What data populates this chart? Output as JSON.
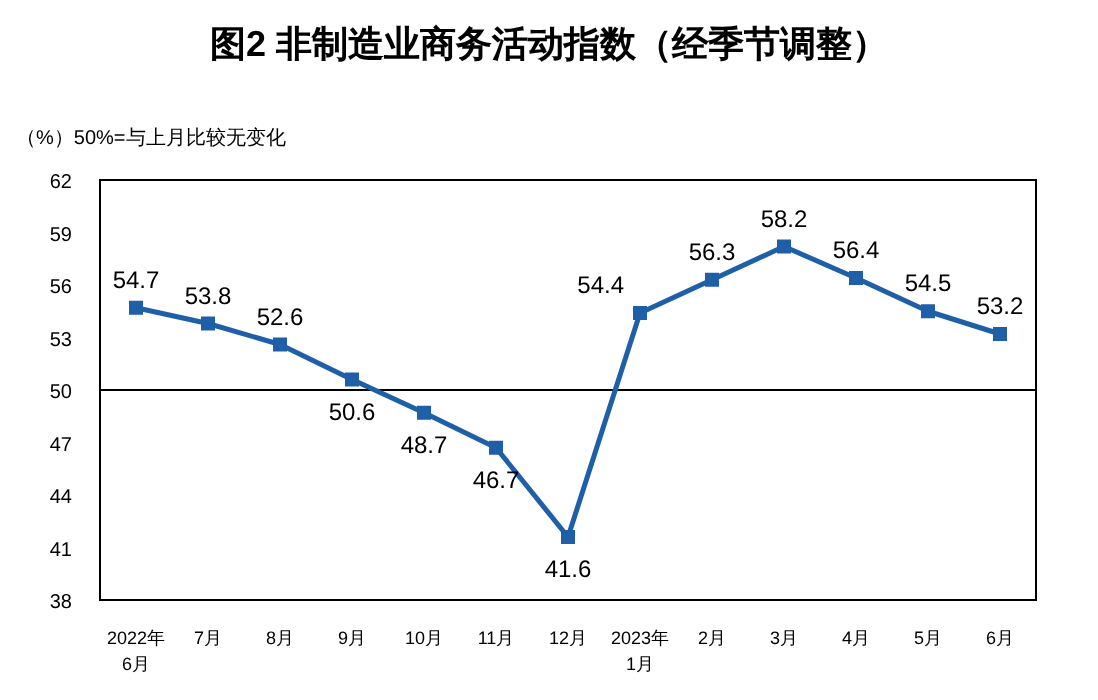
{
  "chart_data": {
    "type": "line",
    "title": "图2 非制造业商务活动指数（经季节调整）",
    "ylabel": "（%）",
    "annotations": [
      "50%=与上月比较无变化"
    ],
    "categories": [
      "2022年\n6月",
      "7月",
      "8月",
      "9月",
      "10月",
      "11月",
      "12月",
      "2023年\n1月",
      "2月",
      "3月",
      "4月",
      "5月",
      "6月"
    ],
    "series": [
      {
        "color": "#1f5fa8",
        "values": [
          54.7,
          53.8,
          52.6,
          50.6,
          48.7,
          46.7,
          41.6,
          54.4,
          56.3,
          58.2,
          56.4,
          54.5,
          53.2
        ]
      }
    ],
    "ylim": [
      38,
      62
    ],
    "yticks": [
      38,
      41,
      44,
      47,
      50,
      53,
      56,
      59,
      62
    ],
    "ref_lines": [
      {
        "axis": "y",
        "value": 50,
        "color": "#000000"
      }
    ],
    "data_labels": true,
    "marker": "square",
    "line_style": "solid",
    "grid": false
  }
}
